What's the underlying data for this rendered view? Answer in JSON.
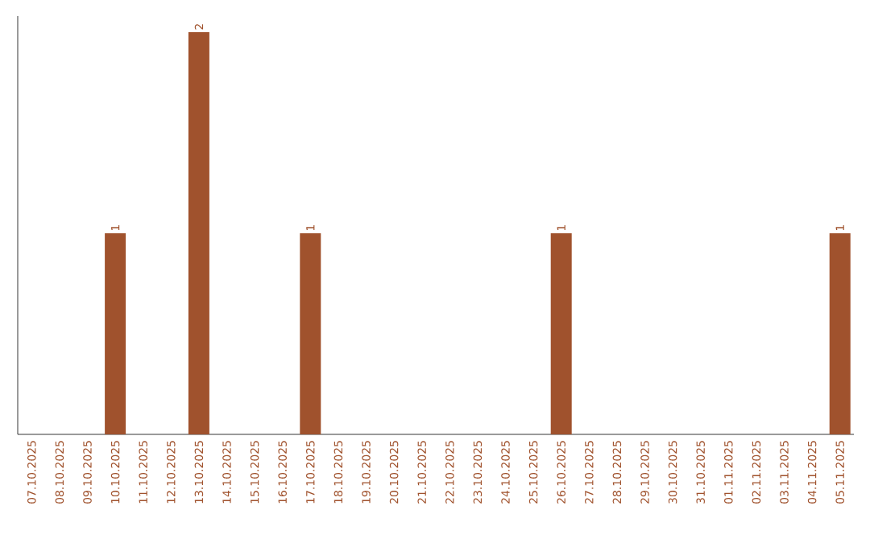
{
  "chart_data": {
    "type": "bar",
    "categories": [
      "07.10.2025",
      "08.10.2025",
      "09.10.2025",
      "10.10.2025",
      "11.10.2025",
      "12.10.2025",
      "13.10.2025",
      "14.10.2025",
      "15.10.2025",
      "16.10.2025",
      "17.10.2025",
      "18.10.2025",
      "19.10.2025",
      "20.10.2025",
      "21.10.2025",
      "22.10.2025",
      "23.10.2025",
      "24.10.2025",
      "25.10.2025",
      "26.10.2025",
      "27.10.2025",
      "28.10.2025",
      "29.10.2025",
      "30.10.2025",
      "31.10.2025",
      "01.11.2025",
      "02.11.2025",
      "03.11.2025",
      "04.11.2025",
      "05.11.2025"
    ],
    "values": [
      0,
      0,
      0,
      1,
      0,
      0,
      2,
      0,
      0,
      0,
      1,
      0,
      0,
      0,
      0,
      0,
      0,
      0,
      0,
      1,
      0,
      0,
      0,
      0,
      0,
      0,
      0,
      0,
      0,
      1
    ],
    "value_labels": [
      null,
      null,
      null,
      "1",
      null,
      null,
      "2",
      null,
      null,
      null,
      "1",
      null,
      null,
      null,
      null,
      null,
      null,
      null,
      null,
      "1",
      null,
      null,
      null,
      null,
      null,
      null,
      null,
      null,
      null,
      "1"
    ],
    "color": "#a0522d",
    "ylim": [
      0,
      2.08
    ],
    "tick_labels": "x"
  }
}
